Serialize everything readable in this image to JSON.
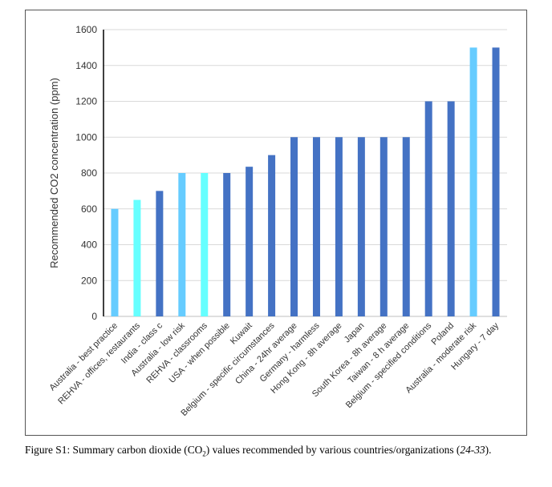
{
  "chart_data": {
    "type": "bar",
    "title": "",
    "xlabel": "",
    "ylabel": "Recommended CO2 concentration (ppm)",
    "ylim": [
      0,
      1600
    ],
    "yticks": [
      0,
      200,
      400,
      600,
      800,
      1000,
      1200,
      1400,
      1600
    ],
    "grid": true,
    "categories": [
      "Australia - best practice",
      "REHVA - offices, restaurants",
      "India - class c",
      "Australia - low risk",
      "REHVA - classrooms",
      "USA - when possible",
      "Kuwait",
      "Belgium - specific circumstances",
      "China - 24hr average",
      "Germany - harmless",
      "Hong Kong - 8h average",
      "Japan",
      "South Korea - 8h average",
      "Taiwan - 8 h average",
      "Belgium - specified conditions",
      "Poland",
      "Australia - moderate risk",
      "Hungary - 7 day"
    ],
    "values": [
      600,
      650,
      700,
      800,
      800,
      800,
      835,
      900,
      1000,
      1000,
      1000,
      1000,
      1000,
      1000,
      1200,
      1200,
      1500,
      1500
    ],
    "bar_colors": [
      "#66CCFF",
      "#66FFFF",
      "#4472C4",
      "#66CCFF",
      "#66FFFF",
      "#4472C4",
      "#4472C4",
      "#4472C4",
      "#4472C4",
      "#4472C4",
      "#4472C4",
      "#4472C4",
      "#4472C4",
      "#4472C4",
      "#4472C4",
      "#4472C4",
      "#66CCFF",
      "#4472C4"
    ]
  },
  "caption": {
    "text": "Figure S1: Summary carbon dioxide (CO",
    "sub": "2",
    "text2": ") values recommended by various countries/organizations (",
    "refs": "24-33",
    "end": ")."
  }
}
